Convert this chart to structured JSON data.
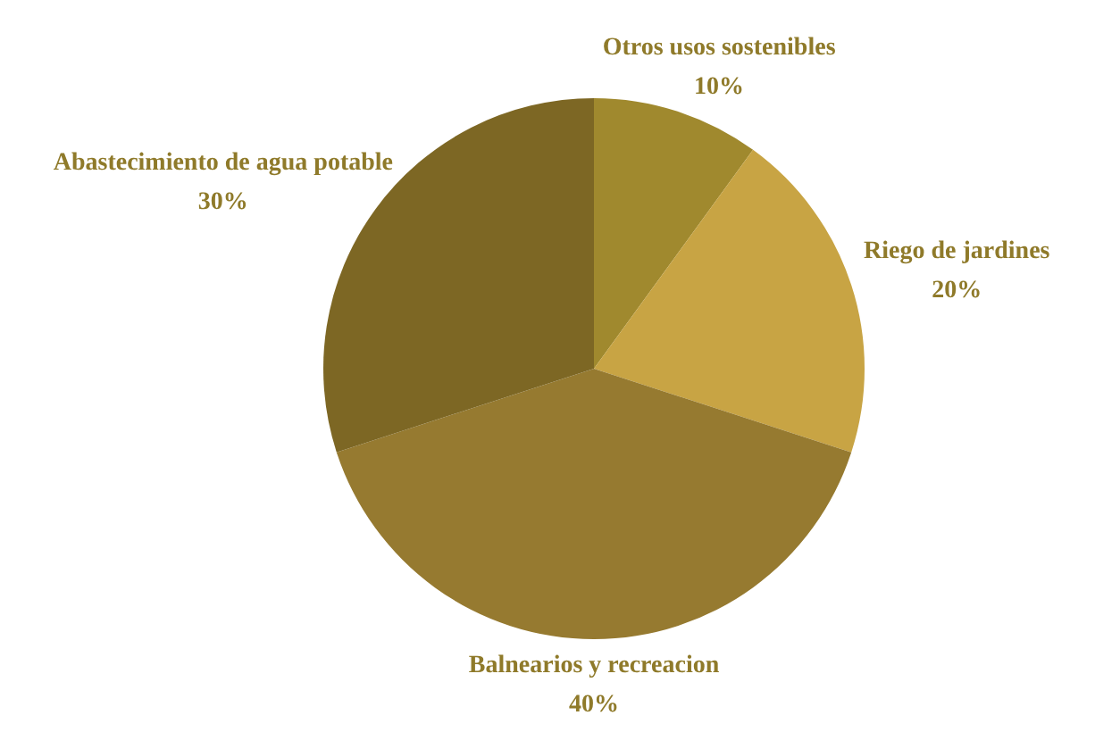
{
  "chart_data": {
    "type": "pie",
    "categories": [
      "Otros usos sostenibles",
      "Riego de jardines",
      "Balnearios y recreacion",
      "Abastecimiento de agua potable"
    ],
    "values": [
      10,
      20,
      40,
      30
    ],
    "value_labels": [
      "10%",
      "20%",
      "40%",
      "30%"
    ],
    "colors": [
      "#a0892e",
      "#c8a444",
      "#967a30",
      "#7d6724"
    ],
    "legend": false
  }
}
